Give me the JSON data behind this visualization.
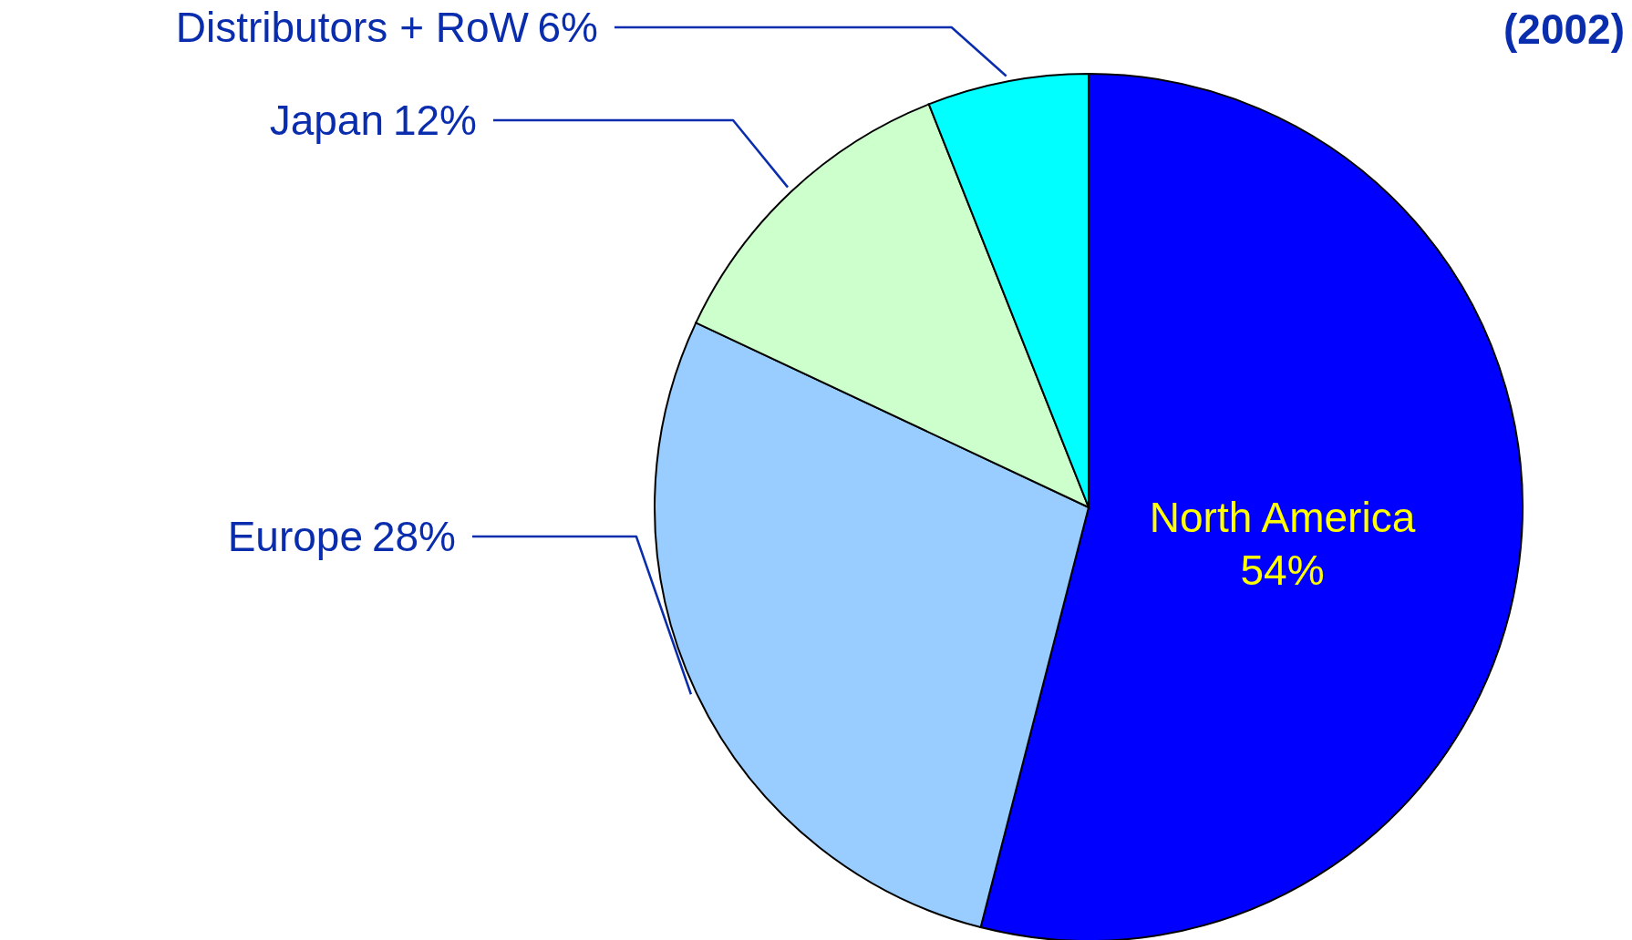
{
  "chart_data": {
    "type": "pie",
    "title": "(2002)",
    "categories": [
      "North America",
      "Europe",
      "Japan",
      "Distributors + RoW"
    ],
    "values": [
      54,
      28,
      12,
      6
    ],
    "value_labels": [
      "54%",
      "28%",
      "12%",
      "6%"
    ],
    "colors": [
      "#0000ff",
      "#99ccff",
      "#ccffcc",
      "#00ffff"
    ]
  }
}
